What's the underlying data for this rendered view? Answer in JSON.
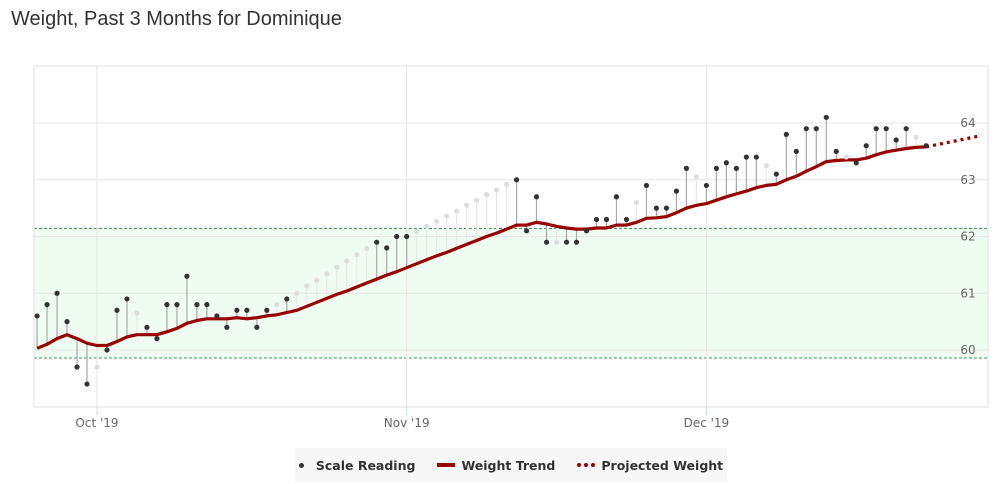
{
  "chart_data": {
    "type": "line",
    "title": "Weight, Past 3 Months for Dominique",
    "x_unit": "days since 2019-10-01",
    "x_range": [
      -6.3,
      88.3
    ],
    "xticks": [
      {
        "day": 0,
        "label": "Oct '19"
      },
      {
        "day": 31,
        "label": "Nov '19"
      },
      {
        "day": 61,
        "label": "Dec '19"
      }
    ],
    "ylim": [
      59.0,
      64.8
    ],
    "yticks": [
      60,
      61,
      62,
      63,
      64
    ],
    "grid": true,
    "target_band": {
      "low": 59.86,
      "high": 62.14,
      "color": "#effcf1",
      "line_color": "#3d9b55"
    },
    "legend": {
      "placement": "bottom-center",
      "items": [
        "Scale Reading",
        "Weight Trend",
        "Projected Weight"
      ]
    },
    "colors": {
      "trend": "#990000",
      "point": "#333333",
      "point_estimated": "#dddddd",
      "stem": "#a8a8a8",
      "stem_estimated": "#e8e8e8"
    },
    "scale_readings": [
      [
        -6,
        60.6,
        1
      ],
      [
        -5,
        60.8,
        1
      ],
      [
        -4,
        61.0,
        1
      ],
      [
        -3,
        60.5,
        1
      ],
      [
        -2,
        59.7,
        1
      ],
      [
        -1,
        59.4,
        1
      ],
      [
        0,
        59.7,
        0
      ],
      [
        1,
        60.0,
        1
      ],
      [
        2,
        60.7,
        1
      ],
      [
        3,
        60.9,
        1
      ],
      [
        4,
        60.65,
        0
      ],
      [
        5,
        60.4,
        1
      ],
      [
        6,
        60.2,
        1
      ],
      [
        7,
        60.8,
        1
      ],
      [
        8,
        60.8,
        1
      ],
      [
        9,
        61.3,
        1
      ],
      [
        10,
        60.8,
        1
      ],
      [
        11,
        60.8,
        1
      ],
      [
        12,
        60.6,
        1
      ],
      [
        13,
        60.4,
        1
      ],
      [
        14,
        60.7,
        1
      ],
      [
        15,
        60.7,
        1
      ],
      [
        16,
        60.4,
        1
      ],
      [
        17,
        60.7,
        1
      ],
      [
        18,
        60.8,
        0
      ],
      [
        19,
        60.9,
        1
      ],
      [
        20,
        61.0,
        0
      ],
      [
        21,
        61.13,
        0
      ],
      [
        22,
        61.23,
        0
      ],
      [
        23,
        61.34,
        0
      ],
      [
        24,
        61.46,
        0
      ],
      [
        25,
        61.57,
        0
      ],
      [
        26,
        61.68,
        0
      ],
      [
        27,
        61.79,
        0
      ],
      [
        28,
        61.9,
        1
      ],
      [
        29,
        61.8,
        1
      ],
      [
        30,
        62.0,
        1
      ],
      [
        31,
        62.0,
        1
      ],
      [
        32,
        62.09,
        0
      ],
      [
        33,
        62.18,
        0
      ],
      [
        34,
        62.27,
        0
      ],
      [
        35,
        62.36,
        0
      ],
      [
        36,
        62.45,
        0
      ],
      [
        37,
        62.55,
        0
      ],
      [
        38,
        62.64,
        0
      ],
      [
        39,
        62.74,
        0
      ],
      [
        40,
        62.82,
        0
      ],
      [
        41,
        62.92,
        0
      ],
      [
        42,
        63.0,
        1
      ],
      [
        43,
        62.1,
        1
      ],
      [
        44,
        62.7,
        1
      ],
      [
        45,
        61.9,
        1
      ],
      [
        46,
        61.9,
        0
      ],
      [
        47,
        61.9,
        1
      ],
      [
        48,
        61.9,
        1
      ],
      [
        49,
        62.1,
        1
      ],
      [
        50,
        62.3,
        1
      ],
      [
        51,
        62.3,
        1
      ],
      [
        52,
        62.7,
        1
      ],
      [
        53,
        62.3,
        1
      ],
      [
        54,
        62.6,
        0
      ],
      [
        55,
        62.9,
        1
      ],
      [
        56,
        62.5,
        1
      ],
      [
        57,
        62.5,
        1
      ],
      [
        58,
        62.8,
        1
      ],
      [
        59,
        63.2,
        1
      ],
      [
        60,
        63.05,
        0
      ],
      [
        61,
        62.9,
        1
      ],
      [
        62,
        63.2,
        1
      ],
      [
        63,
        63.3,
        1
      ],
      [
        64,
        63.2,
        1
      ],
      [
        65,
        63.4,
        1
      ],
      [
        66,
        63.4,
        1
      ],
      [
        67,
        63.25,
        0
      ],
      [
        68,
        63.1,
        1
      ],
      [
        69,
        63.8,
        1
      ],
      [
        70,
        63.5,
        1
      ],
      [
        71,
        63.9,
        1
      ],
      [
        72,
        63.9,
        1
      ],
      [
        73,
        64.1,
        1
      ],
      [
        74,
        63.5,
        1
      ],
      [
        75,
        63.4,
        0
      ],
      [
        76,
        63.3,
        1
      ],
      [
        77,
        63.6,
        1
      ],
      [
        78,
        63.9,
        1
      ],
      [
        79,
        63.9,
        1
      ],
      [
        80,
        63.7,
        1
      ],
      [
        81,
        63.9,
        1
      ],
      [
        82,
        63.75,
        0
      ],
      [
        83,
        63.6,
        1
      ]
    ],
    "trend_start_day": -6,
    "weight_trend": [
      60.03,
      60.1,
      60.2,
      60.27,
      60.2,
      60.12,
      60.08,
      60.08,
      60.15,
      60.23,
      60.27,
      60.27,
      60.27,
      60.32,
      60.38,
      60.47,
      60.52,
      60.55,
      60.55,
      60.55,
      60.57,
      60.55,
      60.57,
      60.6,
      60.62,
      60.66,
      60.7,
      60.77,
      60.84,
      60.91,
      60.98,
      61.04,
      61.11,
      61.18,
      61.25,
      61.32,
      61.38,
      61.45,
      61.52,
      61.59,
      61.66,
      61.72,
      61.79,
      61.86,
      61.93,
      62.0,
      62.06,
      62.13,
      62.2,
      62.2,
      62.25,
      62.22,
      62.18,
      62.15,
      62.13,
      62.13,
      62.15,
      62.15,
      62.2,
      62.2,
      62.25,
      62.32,
      62.33,
      62.35,
      62.42,
      62.5,
      62.55,
      62.58,
      62.64,
      62.7,
      62.75,
      62.8,
      62.86,
      62.9,
      62.92,
      63.0,
      63.06,
      63.15,
      63.23,
      63.32,
      63.34,
      63.35,
      63.35,
      63.38,
      63.44,
      63.49,
      63.52,
      63.55,
      63.57,
      63.58
    ],
    "projected_weight": [
      [
        83,
        63.58
      ],
      [
        88.3,
        63.77
      ]
    ]
  }
}
